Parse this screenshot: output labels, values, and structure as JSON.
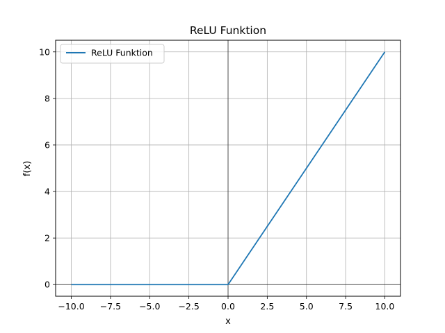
{
  "chart_data": {
    "type": "line",
    "title": "ReLU Funktion",
    "xlabel": "x",
    "ylabel": "f(x)",
    "xlim": [
      -11,
      11
    ],
    "ylim": [
      -0.5,
      10.5
    ],
    "xticks": [
      -10.0,
      -7.5,
      -5.0,
      -2.5,
      0.0,
      2.5,
      5.0,
      7.5,
      10.0
    ],
    "xtick_labels": [
      "−10.0",
      "−7.5",
      "−5.0",
      "−2.5",
      "0.0",
      "2.5",
      "5.0",
      "7.5",
      "10.0"
    ],
    "yticks": [
      0,
      2,
      4,
      6,
      8,
      10
    ],
    "ytick_labels": [
      "0",
      "2",
      "4",
      "6",
      "8",
      "10"
    ],
    "grid": true,
    "reference_lines": {
      "x0": true,
      "y0": true
    },
    "legend": {
      "position": "top-left"
    },
    "series": [
      {
        "name": "ReLU Funktion",
        "color": "#1f77b4",
        "x": [
          -10,
          0,
          10
        ],
        "y": [
          0,
          0,
          10
        ]
      }
    ]
  }
}
